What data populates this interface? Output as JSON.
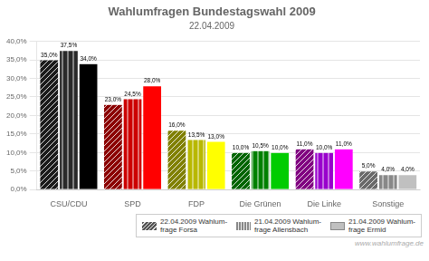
{
  "chart_data": {
    "type": "bar",
    "title": "Wahlumfragen Bundestagswahl 2009",
    "subtitle": "22.04.2009",
    "categories": [
      "CSU/CDU",
      "SPD",
      "FDP",
      "Die Grünen",
      "Die Linke",
      "Sonstige"
    ],
    "series": [
      {
        "name": "22.04.2009 Wahlum-\nfrage Forsa",
        "color": "#555555",
        "colors": [
          "#1a1a1a",
          "#8b0000",
          "#808000",
          "#006400",
          "#800080",
          "#696969"
        ],
        "values": [
          35.0,
          23.0,
          16.0,
          10.0,
          11.0,
          5.0
        ],
        "value_labels": [
          "35,0%",
          "23,0%",
          "16,0%",
          "10,0%",
          "11,0%",
          "5,0%"
        ]
      },
      {
        "name": "21.04.2009 Wahlum-\nfrage Allensbach",
        "color": "#888888",
        "colors": [
          "#2a2a2a",
          "#cc0000",
          "#b8b800",
          "#008000",
          "#9900cc",
          "#888888"
        ],
        "values": [
          37.5,
          24.5,
          13.5,
          10.5,
          10.0,
          4.0
        ],
        "value_labels": [
          "37,5%",
          "24,5%",
          "13,5%",
          "10,5%",
          "10,0%",
          "4,0%"
        ]
      },
      {
        "name": "21.04.2009 Wahlum-\nfrage Ermid",
        "color": "#c0c0c0",
        "colors": [
          "#000000",
          "#ff0000",
          "#ffff00",
          "#00cc00",
          "#ff00ff",
          "#c0c0c0"
        ],
        "values": [
          34.0,
          28.0,
          13.0,
          10.0,
          11.0,
          4.0
        ],
        "value_labels": [
          "34,0%",
          "28,0%",
          "13,0%",
          "10,0%",
          "11,0%",
          "4,0%"
        ]
      }
    ],
    "ylim": [
      0,
      40
    ],
    "yticks": [
      {
        "value": 0,
        "label": "0,0%"
      },
      {
        "value": 5,
        "label": "5,0%"
      },
      {
        "value": 10,
        "label": "10,0%"
      },
      {
        "value": 15,
        "label": "15,0%"
      },
      {
        "value": 20,
        "label": "20,0%"
      },
      {
        "value": 25,
        "label": "25,0%"
      },
      {
        "value": 30,
        "label": "30,0%"
      },
      {
        "value": 35,
        "label": "35,0%"
      },
      {
        "value": 40,
        "label": "40,0%"
      }
    ],
    "grid": true,
    "data_labels": true,
    "legend": "bottom",
    "annotations": [
      "www.wahlumfrage.de"
    ]
  }
}
